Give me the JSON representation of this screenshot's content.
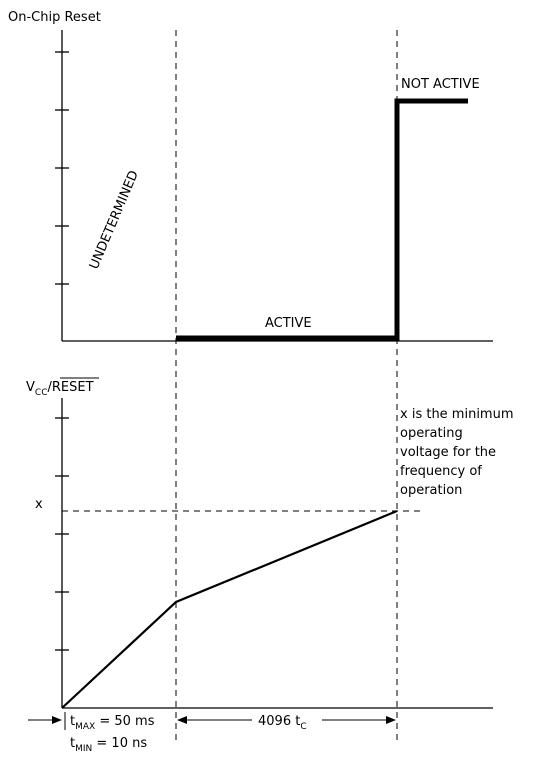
{
  "top_panel": {
    "ylabel": "On-Chip Reset",
    "state_undetermined": "UNDETERMINED",
    "state_active": "ACTIVE",
    "state_not_active": "NOT ACTIVE"
  },
  "bottom_panel": {
    "ylabel_main": "V",
    "ylabel_sub": "CC",
    "ylabel_slash": "/",
    "ylabel_reset": "RESET",
    "x_marker": "x",
    "note_lines": [
      "x is the minimum",
      "operating",
      "voltage for the",
      "frequency of",
      "operation"
    ]
  },
  "timing": {
    "tmax_t": "t",
    "tmax_sub": "MAX",
    "tmax_value": " = 50 ms",
    "tmin_t": "t",
    "tmin_sub": "MIN",
    "tmin_value": " = 10 ns",
    "interval_value": "4096 t",
    "interval_sub": "C"
  }
}
